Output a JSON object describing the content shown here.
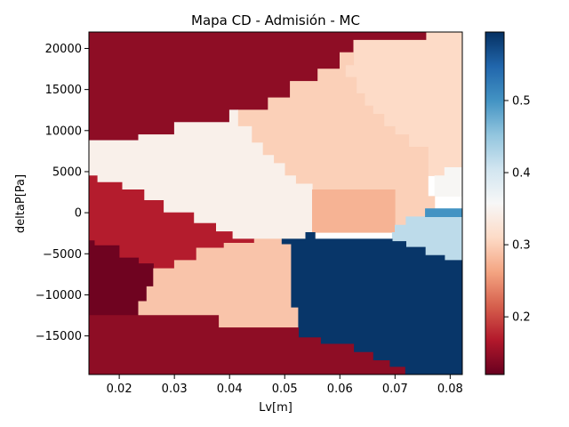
{
  "chart_data": {
    "type": "heatmap",
    "title": "Mapa CD - Admisión - MC",
    "xlabel": "Lv[m]",
    "ylabel": "deltaP[Pa]",
    "xlim": [
      0.0145,
      0.0822
    ],
    "ylim": [
      -19700,
      22000
    ],
    "x_ticks": [
      0.02,
      0.03,
      0.04,
      0.05,
      0.06,
      0.07,
      0.08
    ],
    "x_tick_labels": [
      "0.02",
      "0.03",
      "0.04",
      "0.05",
      "0.06",
      "0.07",
      "0.08"
    ],
    "y_ticks": [
      -15000,
      -10000,
      -5000,
      0,
      5000,
      10000,
      15000,
      20000
    ],
    "y_tick_labels": [
      "−15000",
      "−10000",
      "−5000",
      "0",
      "5000",
      "10000",
      "15000",
      "20000"
    ],
    "colorbar": {
      "colormap": "RdBu",
      "range": [
        0.12,
        0.595
      ],
      "ticks": [
        0.2,
        0.3,
        0.4,
        0.5
      ],
      "tick_labels": [
        "0.2",
        "0.3",
        "0.4",
        "0.5"
      ]
    },
    "regions": [
      {
        "name": "top-dark-red",
        "value": 0.145,
        "polygon": [
          [
            0.0145,
            22000
          ],
          [
            0.0757,
            22000
          ],
          [
            0.0757,
            21000
          ],
          [
            0.0625,
            21000
          ],
          [
            0.0625,
            19500
          ],
          [
            0.06,
            19500
          ],
          [
            0.06,
            17500
          ],
          [
            0.056,
            17500
          ],
          [
            0.056,
            16000
          ],
          [
            0.051,
            16000
          ],
          [
            0.051,
            14000
          ],
          [
            0.047,
            14000
          ],
          [
            0.047,
            12500
          ],
          [
            0.04,
            12500
          ],
          [
            0.04,
            11000
          ],
          [
            0.03,
            11000
          ],
          [
            0.03,
            9500
          ],
          [
            0.0235,
            9500
          ],
          [
            0.0235,
            8800
          ],
          [
            0.0145,
            8800
          ]
        ]
      },
      {
        "name": "top-light-peach",
        "value": 0.31,
        "polygon": [
          [
            0.0757,
            22000
          ],
          [
            0.0822,
            22000
          ],
          [
            0.0822,
            5500
          ],
          [
            0.079,
            5500
          ],
          [
            0.079,
            4500
          ],
          [
            0.076,
            4500
          ],
          [
            0.076,
            8000
          ],
          [
            0.0725,
            8000
          ],
          [
            0.0725,
            9500
          ],
          [
            0.07,
            9500
          ],
          [
            0.07,
            10500
          ],
          [
            0.068,
            10500
          ],
          [
            0.068,
            12000
          ],
          [
            0.066,
            12000
          ],
          [
            0.066,
            13000
          ],
          [
            0.0645,
            13000
          ],
          [
            0.0645,
            14500
          ],
          [
            0.063,
            14500
          ],
          [
            0.063,
            16500
          ],
          [
            0.061,
            16500
          ],
          [
            0.061,
            18000
          ],
          [
            0.0625,
            18000
          ],
          [
            0.0625,
            21000
          ],
          [
            0.0757,
            21000
          ]
        ]
      },
      {
        "name": "white-right-edge",
        "value": 0.355,
        "polygon": [
          [
            0.079,
            5500
          ],
          [
            0.0822,
            5500
          ],
          [
            0.0822,
            2000
          ],
          [
            0.0772,
            2000
          ],
          [
            0.0772,
            4500
          ],
          [
            0.079,
            4500
          ]
        ]
      },
      {
        "name": "upper-middle-peach",
        "value": 0.3,
        "polygon": [
          [
            0.047,
            12500
          ],
          [
            0.047,
            14000
          ],
          [
            0.051,
            14000
          ],
          [
            0.051,
            16000
          ],
          [
            0.056,
            16000
          ],
          [
            0.056,
            17500
          ],
          [
            0.06,
            17500
          ],
          [
            0.06,
            19500
          ],
          [
            0.0625,
            19500
          ],
          [
            0.0625,
            18000
          ],
          [
            0.061,
            18000
          ],
          [
            0.061,
            16500
          ],
          [
            0.063,
            16500
          ],
          [
            0.063,
            14500
          ],
          [
            0.0645,
            14500
          ],
          [
            0.0645,
            13000
          ],
          [
            0.066,
            13000
          ],
          [
            0.066,
            12000
          ],
          [
            0.068,
            12000
          ],
          [
            0.068,
            10500
          ],
          [
            0.07,
            10500
          ],
          [
            0.07,
            9500
          ],
          [
            0.0725,
            9500
          ],
          [
            0.0725,
            8000
          ],
          [
            0.076,
            8000
          ],
          [
            0.076,
            2000
          ],
          [
            0.0772,
            2000
          ],
          [
            0.0772,
            500
          ],
          [
            0.0755,
            500
          ],
          [
            0.0755,
            -500
          ],
          [
            0.072,
            -500
          ],
          [
            0.072,
            -1500
          ],
          [
            0.07,
            -1500
          ],
          [
            0.07,
            2800
          ],
          [
            0.055,
            2800
          ],
          [
            0.055,
            3500
          ],
          [
            0.052,
            3500
          ],
          [
            0.052,
            4500
          ],
          [
            0.05,
            4500
          ],
          [
            0.05,
            6000
          ],
          [
            0.048,
            6000
          ],
          [
            0.048,
            7000
          ],
          [
            0.046,
            7000
          ],
          [
            0.046,
            8500
          ],
          [
            0.044,
            8500
          ],
          [
            0.044,
            10500
          ],
          [
            0.0415,
            10500
          ],
          [
            0.0415,
            12500
          ]
        ]
      },
      {
        "name": "center-white-band",
        "value": 0.345,
        "polygon": [
          [
            0.0145,
            8800
          ],
          [
            0.0235,
            8800
          ],
          [
            0.0235,
            9500
          ],
          [
            0.03,
            9500
          ],
          [
            0.03,
            11000
          ],
          [
            0.04,
            11000
          ],
          [
            0.04,
            12500
          ],
          [
            0.0415,
            12500
          ],
          [
            0.0415,
            10500
          ],
          [
            0.044,
            10500
          ],
          [
            0.044,
            8500
          ],
          [
            0.046,
            8500
          ],
          [
            0.046,
            7000
          ],
          [
            0.048,
            7000
          ],
          [
            0.048,
            6000
          ],
          [
            0.05,
            6000
          ],
          [
            0.05,
            4500
          ],
          [
            0.052,
            4500
          ],
          [
            0.052,
            3500
          ],
          [
            0.055,
            3500
          ],
          [
            0.055,
            -3200
          ],
          [
            0.0405,
            -3200
          ],
          [
            0.0405,
            -2300
          ],
          [
            0.0375,
            -2300
          ],
          [
            0.0375,
            -1300
          ],
          [
            0.0335,
            -1300
          ],
          [
            0.0335,
            0
          ],
          [
            0.028,
            0
          ],
          [
            0.028,
            1500
          ],
          [
            0.0245,
            1500
          ],
          [
            0.0245,
            2800
          ],
          [
            0.0205,
            2800
          ],
          [
            0.0205,
            3700
          ],
          [
            0.016,
            3700
          ],
          [
            0.016,
            4500
          ],
          [
            0.0145,
            4500
          ]
        ]
      },
      {
        "name": "center-salmon",
        "value": 0.275,
        "polygon": [
          [
            0.055,
            2800
          ],
          [
            0.07,
            2800
          ],
          [
            0.07,
            -2400
          ],
          [
            0.0555,
            -2400
          ],
          [
            0.0555,
            -3200
          ],
          [
            0.055,
            -3200
          ]
        ]
      },
      {
        "name": "light-blue-patch",
        "value": 0.42,
        "polygon": [
          [
            0.0755,
            -500
          ],
          [
            0.0822,
            -500
          ],
          [
            0.0822,
            -5800
          ],
          [
            0.079,
            -5800
          ],
          [
            0.079,
            -5200
          ],
          [
            0.0755,
            -5200
          ],
          [
            0.0755,
            -4200
          ],
          [
            0.072,
            -4200
          ],
          [
            0.072,
            -3500
          ],
          [
            0.0695,
            -3500
          ],
          [
            0.0695,
            -2400
          ],
          [
            0.07,
            -2400
          ],
          [
            0.07,
            -1500
          ],
          [
            0.072,
            -1500
          ],
          [
            0.072,
            -500
          ]
        ]
      },
      {
        "name": "blue-stripe",
        "value": 0.5,
        "polygon": [
          [
            0.0755,
            500
          ],
          [
            0.0822,
            500
          ],
          [
            0.0822,
            -500
          ],
          [
            0.0755,
            -500
          ]
        ]
      },
      {
        "name": "left-red-wedge",
        "value": 0.17,
        "polygon": [
          [
            0.0145,
            4500
          ],
          [
            0.016,
            4500
          ],
          [
            0.016,
            3700
          ],
          [
            0.0205,
            3700
          ],
          [
            0.0205,
            2800
          ],
          [
            0.0245,
            2800
          ],
          [
            0.0245,
            1500
          ],
          [
            0.028,
            1500
          ],
          [
            0.028,
            0
          ],
          [
            0.0335,
            0
          ],
          [
            0.0335,
            -1300
          ],
          [
            0.0375,
            -1300
          ],
          [
            0.0375,
            -2300
          ],
          [
            0.0405,
            -2300
          ],
          [
            0.0405,
            -3200
          ],
          [
            0.0445,
            -3200
          ],
          [
            0.0445,
            -3700
          ],
          [
            0.039,
            -3700
          ],
          [
            0.039,
            -4300
          ],
          [
            0.034,
            -4300
          ],
          [
            0.034,
            -5800
          ],
          [
            0.03,
            -5800
          ],
          [
            0.03,
            -6800
          ],
          [
            0.0262,
            -6800
          ],
          [
            0.0262,
            -6200
          ],
          [
            0.0235,
            -6200
          ],
          [
            0.0235,
            -5500
          ],
          [
            0.02,
            -5500
          ],
          [
            0.02,
            -4000
          ],
          [
            0.0155,
            -4000
          ],
          [
            0.0155,
            -3400
          ],
          [
            0.0145,
            -3400
          ]
        ]
      },
      {
        "name": "left-darkest",
        "value": 0.125,
        "polygon": [
          [
            0.0145,
            -3400
          ],
          [
            0.0155,
            -3400
          ],
          [
            0.0155,
            -4000
          ],
          [
            0.02,
            -4000
          ],
          [
            0.02,
            -5500
          ],
          [
            0.0235,
            -5500
          ],
          [
            0.0235,
            -6200
          ],
          [
            0.0262,
            -6200
          ],
          [
            0.0262,
            -9000
          ],
          [
            0.025,
            -9000
          ],
          [
            0.025,
            -10800
          ],
          [
            0.0235,
            -10800
          ],
          [
            0.0235,
            -12500
          ],
          [
            0.0145,
            -12500
          ]
        ]
      },
      {
        "name": "lower-peach",
        "value": 0.29,
        "polygon": [
          [
            0.0262,
            -6800
          ],
          [
            0.03,
            -6800
          ],
          [
            0.03,
            -5800
          ],
          [
            0.034,
            -5800
          ],
          [
            0.034,
            -4300
          ],
          [
            0.039,
            -4300
          ],
          [
            0.039,
            -3700
          ],
          [
            0.0445,
            -3700
          ],
          [
            0.0445,
            -3200
          ],
          [
            0.0495,
            -3200
          ],
          [
            0.0495,
            -3800
          ],
          [
            0.0512,
            -3800
          ],
          [
            0.0512,
            -11500
          ],
          [
            0.0525,
            -11500
          ],
          [
            0.0525,
            -14000
          ],
          [
            0.038,
            -14000
          ],
          [
            0.038,
            -12500
          ],
          [
            0.0235,
            -12500
          ],
          [
            0.0235,
            -10800
          ],
          [
            0.025,
            -10800
          ],
          [
            0.025,
            -9000
          ],
          [
            0.0262,
            -9000
          ]
        ]
      },
      {
        "name": "dark-blue-block",
        "value": 0.59,
        "polygon": [
          [
            0.0495,
            -3200
          ],
          [
            0.0495,
            -3800
          ],
          [
            0.0512,
            -3800
          ],
          [
            0.0512,
            -11500
          ],
          [
            0.0525,
            -11500
          ],
          [
            0.0525,
            -15200
          ],
          [
            0.0535,
            -15200
          ],
          [
            0.0535,
            -15200
          ],
          [
            0.0565,
            -15200
          ],
          [
            0.0565,
            -16000
          ],
          [
            0.0625,
            -16000
          ],
          [
            0.0625,
            -17000
          ],
          [
            0.066,
            -17000
          ],
          [
            0.066,
            -18000
          ],
          [
            0.069,
            -18000
          ],
          [
            0.069,
            -18800
          ],
          [
            0.0718,
            -18800
          ],
          [
            0.0718,
            -19700
          ],
          [
            0.0822,
            -19700
          ],
          [
            0.0822,
            -5800
          ],
          [
            0.079,
            -5800
          ],
          [
            0.079,
            -5200
          ],
          [
            0.0755,
            -5200
          ],
          [
            0.0755,
            -4200
          ],
          [
            0.072,
            -4200
          ],
          [
            0.072,
            -3500
          ],
          [
            0.0695,
            -3500
          ],
          [
            0.0695,
            -3200
          ],
          [
            0.0555,
            -3200
          ],
          [
            0.0555,
            -2400
          ],
          [
            0.0538,
            -2400
          ],
          [
            0.0538,
            -3200
          ]
        ]
      },
      {
        "name": "bottom-dark-red",
        "value": 0.145,
        "polygon": [
          [
            0.0145,
            -12500
          ],
          [
            0.038,
            -12500
          ],
          [
            0.038,
            -14000
          ],
          [
            0.0525,
            -14000
          ],
          [
            0.0525,
            -15200
          ],
          [
            0.0565,
            -15200
          ],
          [
            0.0565,
            -16000
          ],
          [
            0.0625,
            -16000
          ],
          [
            0.0625,
            -17000
          ],
          [
            0.066,
            -17000
          ],
          [
            0.066,
            -18000
          ],
          [
            0.069,
            -18000
          ],
          [
            0.069,
            -18800
          ],
          [
            0.0718,
            -18800
          ],
          [
            0.0718,
            -19700
          ],
          [
            0.0145,
            -19700
          ]
        ]
      }
    ]
  }
}
